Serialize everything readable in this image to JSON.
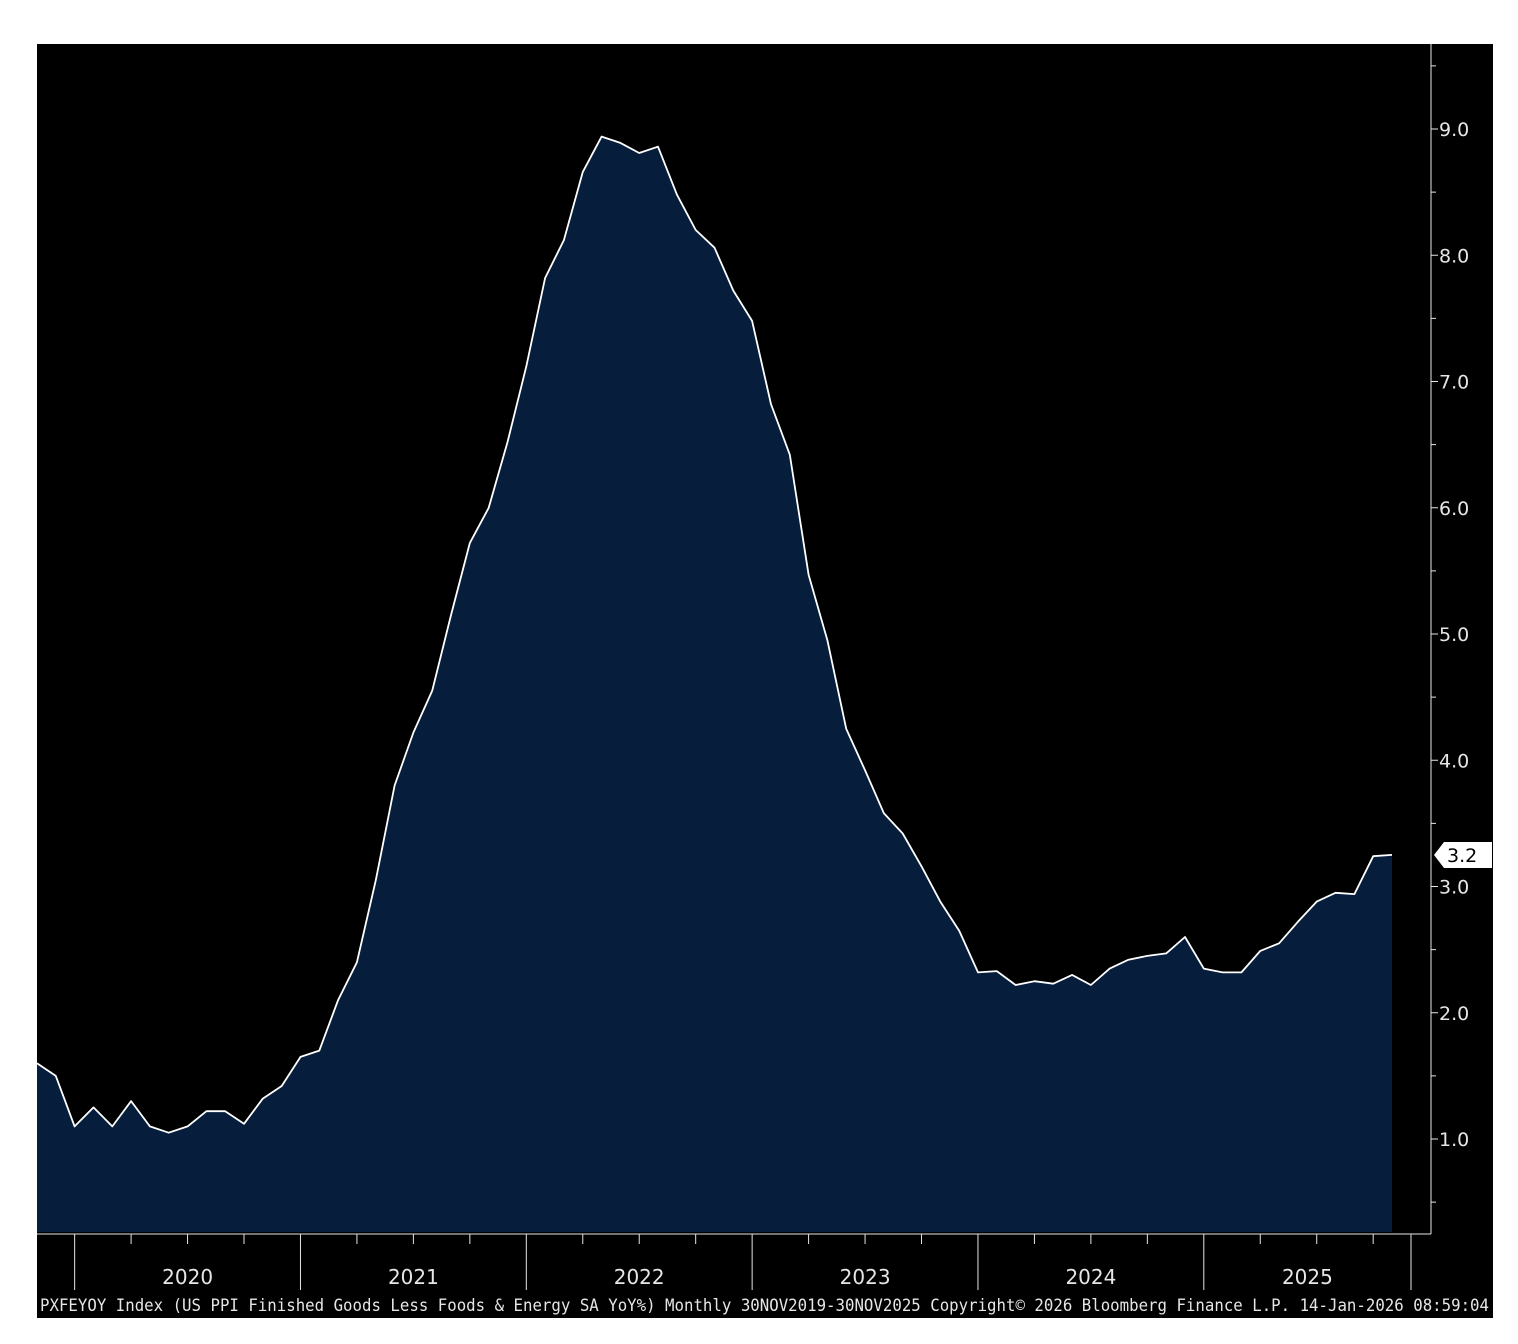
{
  "colors": {
    "background": "#000000",
    "area_fill": "#061e3c",
    "line": "#ffffff",
    "axis_text": "#e6e6e6",
    "last_value_label_bg": "#ffffff"
  },
  "footer": {
    "text": "PXFEYOY Index (US PPI Finished Goods Less Foods & Energy SA YoY%) Monthly 30NOV2019-30NOV2025 Copyright© 2026 Bloomberg Finance L.P. 14-Jan-2026 08:59:04"
  },
  "chart_data": {
    "type": "area",
    "title": "",
    "xlabel": "",
    "ylabel": "",
    "x_range": [
      "2019-11",
      "2025-11"
    ],
    "x_ticks": [
      "2020",
      "2021",
      "2022",
      "2023",
      "2024",
      "2025"
    ],
    "y_ticks": [
      "1.0",
      "2.0",
      "3.0",
      "4.0",
      "5.0",
      "6.0",
      "7.0",
      "8.0",
      "9.0"
    ],
    "ylim": [
      0.25,
      9.65
    ],
    "y_axis_side": "right",
    "grid": false,
    "legend": "none",
    "last_value_label": "3.2",
    "series": [
      {
        "values": [
          1.6,
          1.5,
          1.1,
          1.25,
          1.1,
          1.3,
          1.1,
          1.05,
          1.1,
          1.22,
          1.22,
          1.12,
          1.32,
          1.42,
          1.65,
          1.7,
          2.1,
          2.4,
          3.05,
          3.8,
          4.22,
          4.55,
          5.15,
          5.72,
          6.0,
          6.52,
          7.12,
          7.82,
          8.12,
          8.66,
          8.94,
          8.89,
          8.81,
          8.86,
          8.48,
          8.2,
          8.06,
          7.72,
          7.48,
          6.82,
          6.42,
          5.47,
          4.95,
          4.25,
          3.92,
          3.58,
          3.42,
          3.16,
          2.88,
          2.65,
          2.32,
          2.33,
          2.22,
          2.25,
          2.23,
          2.3,
          2.22,
          2.35,
          2.42,
          2.45,
          2.47,
          2.6,
          2.35,
          2.32,
          2.32,
          2.49,
          2.55,
          2.72,
          2.88,
          2.95,
          2.94,
          3.24,
          3.25
        ]
      }
    ]
  }
}
